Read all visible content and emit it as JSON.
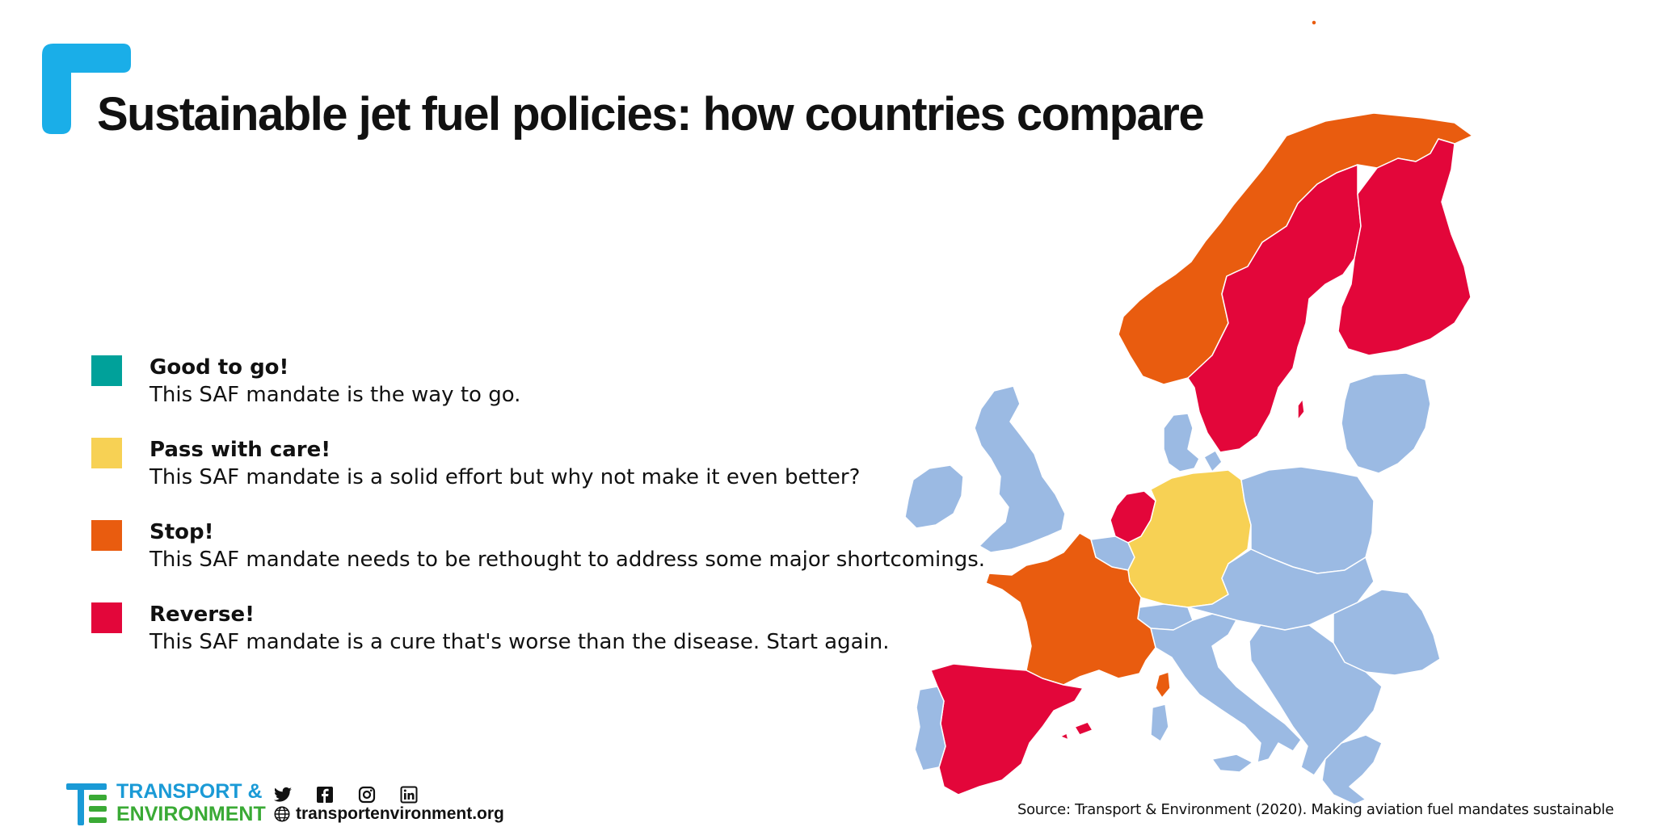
{
  "title": "Sustainable jet fuel policies: how countries compare",
  "colors": {
    "accent_corner": "#1aaee8",
    "good": "#00a19a",
    "pass": "#f7d154",
    "stop": "#e95c0f",
    "reverse": "#e3063a",
    "neutral": "#9bbae3"
  },
  "legend": [
    {
      "title": "Good to go!",
      "description": "This SAF mandate is the way to go.",
      "color": "#00a19a"
    },
    {
      "title": "Pass with care!",
      "description": "This SAF mandate is a solid effort but why not make it even better?",
      "color": "#f7d154"
    },
    {
      "title": "Stop!",
      "description": "This SAF mandate needs to be rethought to address some major shortcomings.",
      "color": "#e95c0f"
    },
    {
      "title": "Reverse!",
      "description": "This SAF mandate is a cure that's worse than the disease. Start again.",
      "color": "#e3063a"
    }
  ],
  "map": {
    "regions": [
      {
        "name": "Norway",
        "rating": "Stop!"
      },
      {
        "name": "Sweden",
        "rating": "Reverse!"
      },
      {
        "name": "Finland",
        "rating": "Reverse!"
      },
      {
        "name": "Netherlands",
        "rating": "Reverse!"
      },
      {
        "name": "Germany",
        "rating": "Pass with care!"
      },
      {
        "name": "France",
        "rating": "Stop!"
      },
      {
        "name": "Spain",
        "rating": "Reverse!"
      }
    ]
  },
  "footer": {
    "brand_line1": "TRANSPORT &",
    "brand_line2": "ENVIRONMENT",
    "social_icons": [
      "twitter-icon",
      "facebook-icon",
      "instagram-icon",
      "linkedin-icon"
    ],
    "website": "transportenvironment.org",
    "source": "Source: Transport & Environment (2020). Making aviation fuel mandates sustainable"
  }
}
